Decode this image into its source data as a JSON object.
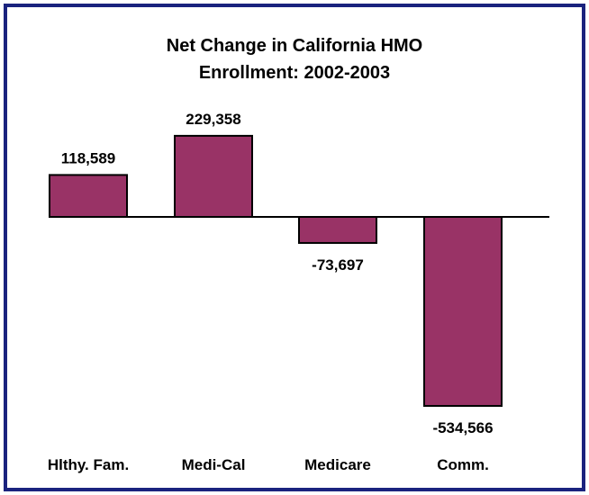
{
  "colors": {
    "frame": "#1a237e",
    "bar": "#993366",
    "bar_stroke": "#000000"
  },
  "chart_data": {
    "type": "bar",
    "title_lines": [
      "Net Change in California HMO",
      "Enrollment: 2002-2003"
    ],
    "categories": [
      "Hlthy. Fam.",
      "Medi-Cal",
      "Medicare",
      "Comm."
    ],
    "values": [
      118589,
      229358,
      -73697,
      -534566
    ],
    "value_labels": [
      "118,589",
      "229,358",
      "-73,697",
      "-534,566"
    ],
    "ylim": [
      -560000,
      260000
    ],
    "grid": false,
    "legend": "none"
  }
}
